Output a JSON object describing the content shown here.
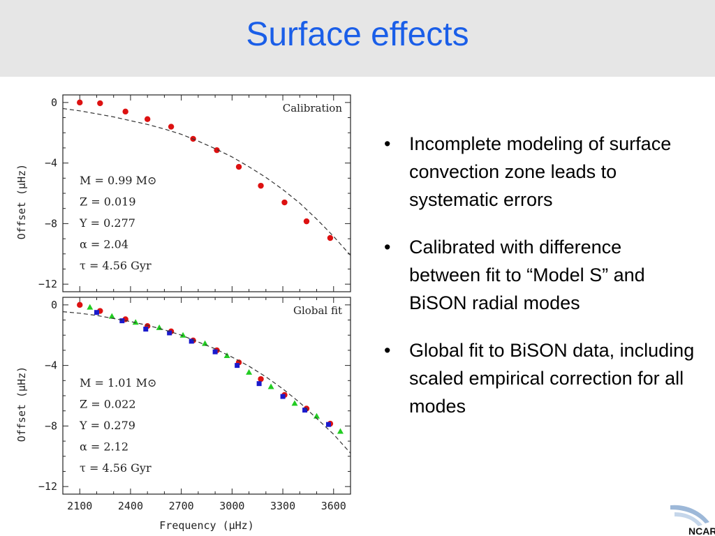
{
  "slide": {
    "title": "Surface effects"
  },
  "bullets": [
    "Incomplete modeling of surface convection zone leads to systematic errors",
    "Calibrated with difference between fit to “Model S” and BiSON radial modes",
    "Global fit to BiSON data, including scaled empirical correction for all modes"
  ],
  "bullet_symbol": "•",
  "logo": {
    "text": "NCAR"
  },
  "colors": {
    "title": "#1a5ee8",
    "red_points": "#dd1111",
    "blue_points": "#1a1acc",
    "green_points": "#22cc22",
    "model_curve": "#333333"
  },
  "chart_data": [
    {
      "type": "scatter",
      "panel_label": "Calibration",
      "xlabel": "Frequency (μHz)",
      "ylabel": "Offset (μHz)",
      "xlim": [
        2000,
        3700
      ],
      "ylim": [
        -12.5,
        0.5
      ],
      "xticks": [
        2100,
        2400,
        2700,
        3000,
        3300,
        3600
      ],
      "yticks": [
        0,
        -4,
        -8,
        -12
      ],
      "grid": false,
      "parameters": [
        "M = 0.99 M⊙",
        "Z = 0.019",
        "Y = 0.277",
        "α = 2.04",
        "τ = 4.56 Gyr"
      ],
      "series": [
        {
          "marker": "circle",
          "color": "#dd1111",
          "x": [
            2100,
            2220,
            2370,
            2500,
            2640,
            2770,
            2910,
            3040,
            3170,
            3310,
            3440,
            3580
          ],
          "y": [
            0.0,
            -0.05,
            -0.6,
            -1.1,
            -1.6,
            -2.4,
            -3.15,
            -4.25,
            -5.5,
            -6.6,
            -7.85,
            -8.95
          ]
        },
        {
          "style": "dashed",
          "color": "#333333",
          "x": [
            2000,
            2100,
            2200,
            2300,
            2400,
            2500,
            2600,
            2700,
            2800,
            2900,
            3000,
            3100,
            3200,
            3300,
            3400,
            3500,
            3600,
            3700
          ],
          "y": [
            -0.4,
            -0.55,
            -0.75,
            -0.95,
            -1.2,
            -1.45,
            -1.75,
            -2.1,
            -2.55,
            -3.05,
            -3.6,
            -4.25,
            -4.95,
            -5.75,
            -6.65,
            -7.7,
            -8.85,
            -10.1
          ]
        }
      ]
    },
    {
      "type": "scatter",
      "panel_label": "Global fit",
      "xlabel": "Frequency (μHz)",
      "ylabel": "Offset (μHz)",
      "xlim": [
        2000,
        3700
      ],
      "ylim": [
        -12.5,
        0.5
      ],
      "xticks": [
        2100,
        2400,
        2700,
        3000,
        3300,
        3600
      ],
      "xticklabels": [
        "2100",
        "2400",
        "2700",
        "3000",
        "3300",
        "3600"
      ],
      "yticks": [
        0,
        -4,
        -8,
        -12
      ],
      "grid": false,
      "parameters": [
        "M = 1.01 M⊙",
        "Z = 0.022",
        "Y = 0.279",
        "α = 2.12",
        "τ = 4.56 Gyr"
      ],
      "series": [
        {
          "marker": "circle",
          "color": "#dd1111",
          "x": [
            2100,
            2220,
            2370,
            2500,
            2640,
            2770,
            2910,
            3040,
            3170,
            3310,
            3440,
            3580
          ],
          "y": [
            0.0,
            -0.4,
            -0.95,
            -1.4,
            -1.75,
            -2.35,
            -3.0,
            -3.8,
            -4.9,
            -5.95,
            -6.85,
            -7.85
          ]
        },
        {
          "marker": "square",
          "color": "#1a1acc",
          "x": [
            2200,
            2350,
            2490,
            2630,
            2760,
            2900,
            3030,
            3160,
            3300,
            3430,
            3570
          ],
          "y": [
            -0.5,
            -1.05,
            -1.6,
            -1.85,
            -2.4,
            -3.1,
            -4.0,
            -5.2,
            -6.05,
            -6.95,
            -7.9
          ]
        },
        {
          "marker": "triangle",
          "color": "#22cc22",
          "x": [
            2160,
            2290,
            2430,
            2570,
            2710,
            2840,
            2970,
            3100,
            3230,
            3370,
            3500,
            3640
          ],
          "y": [
            -0.15,
            -0.75,
            -1.15,
            -1.5,
            -2.0,
            -2.55,
            -3.35,
            -4.45,
            -5.4,
            -6.5,
            -7.35,
            -8.35
          ]
        },
        {
          "style": "dashed",
          "color": "#333333",
          "x": [
            2000,
            2100,
            2200,
            2300,
            2400,
            2500,
            2600,
            2700,
            2800,
            2900,
            3000,
            3100,
            3200,
            3300,
            3400,
            3500,
            3600,
            3700
          ],
          "y": [
            -0.45,
            -0.55,
            -0.7,
            -0.9,
            -1.1,
            -1.35,
            -1.65,
            -2.0,
            -2.45,
            -2.9,
            -3.45,
            -4.05,
            -4.75,
            -5.55,
            -6.45,
            -7.5,
            -8.55,
            -9.8
          ]
        }
      ]
    }
  ]
}
